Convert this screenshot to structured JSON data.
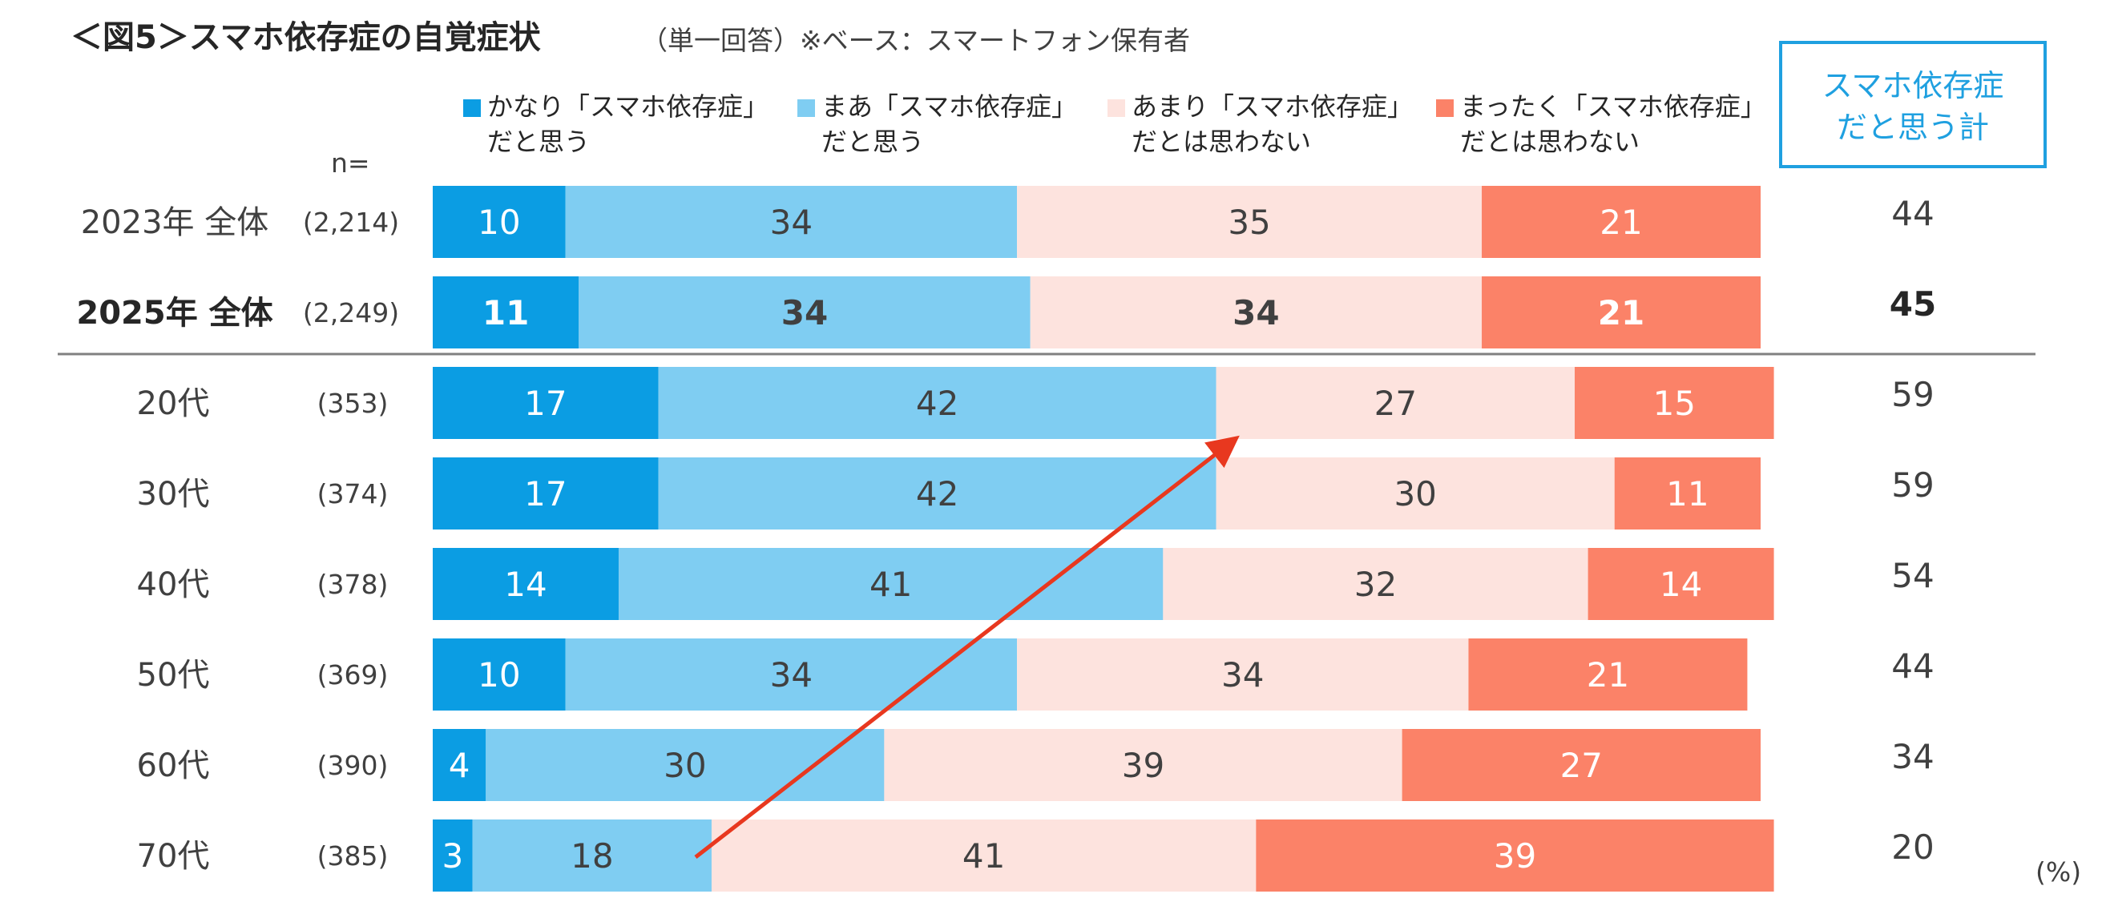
{
  "title": {
    "main": "＜図5＞スマホ依存症の自覚症状",
    "sub": "（単一回答）※ベース：スマートフォン保有者"
  },
  "colors": {
    "series1": "#0b9de3",
    "series2": "#7fcdf2",
    "series3": "#fde3de",
    "series4": "#fb8268",
    "arrow": "#e8381f",
    "total_box": "#1fa0e0",
    "separator": "#808080"
  },
  "n_label": "n=",
  "total_header": {
    "line1": "スマホ依存症",
    "line2": "だと思う計"
  },
  "unit": "(%)",
  "chart_data": {
    "type": "bar",
    "orientation": "horizontal",
    "stacked": "100%",
    "title": "＜図5＞スマホ依存症の自覚症状",
    "categories": [
      "2023年 全体",
      "2025年 全体",
      "20代",
      "30代",
      "40代",
      "50代",
      "60代",
      "70代"
    ],
    "sample_sizes": [
      "(2,214)",
      "(2,249)",
      "(353)",
      "(374)",
      "(378)",
      "(369)",
      "(390)",
      "(385)"
    ],
    "series": [
      {
        "name_line1": "かなり「スマホ依存症」",
        "name_line2": "だと思う",
        "values": [
          10,
          11,
          17,
          17,
          14,
          10,
          4,
          3
        ]
      },
      {
        "name_line1": "まあ「スマホ依存症」",
        "name_line2": "だと思う",
        "values": [
          34,
          34,
          42,
          42,
          41,
          34,
          30,
          18
        ]
      },
      {
        "name_line1": "あまり「スマホ依存症」",
        "name_line2": "だとは思わない",
        "values": [
          35,
          34,
          27,
          30,
          32,
          34,
          39,
          41
        ]
      },
      {
        "name_line1": "まったく「スマホ依存症」",
        "name_line2": "だとは思わない",
        "values": [
          21,
          21,
          15,
          11,
          14,
          21,
          27,
          39
        ]
      }
    ],
    "totals": [
      44,
      45,
      59,
      59,
      54,
      44,
      34,
      20
    ],
    "highlight_row": "2025年 全体",
    "xlim": [
      0,
      100
    ],
    "annotation": "arrow from 70代 bar to 20代 bar indicating increase with younger age"
  }
}
